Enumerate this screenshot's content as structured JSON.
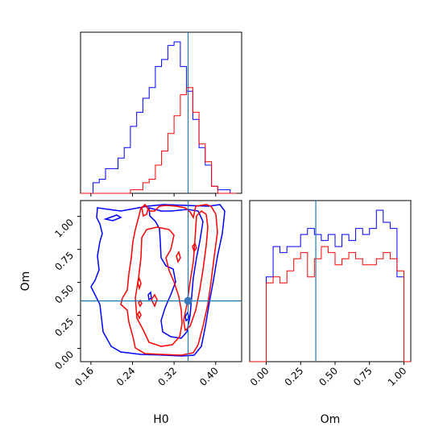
{
  "chart_data": {
    "type": "corner",
    "parameters": [
      "H0",
      "Om"
    ],
    "truth": {
      "H0": 0.347,
      "Om": 0.36
    },
    "colors": {
      "truth": "#1f77b4",
      "series_blue": "#0000ff",
      "series_red": "#ff0000",
      "truth_marker": "#3b7bbd"
    },
    "panels": {
      "hist_H0": {
        "xlim": [
          0.14,
          0.45
        ],
        "xticks": [
          0.16,
          0.24,
          0.32,
          0.4
        ],
        "xtick_labels": [
          "0.16",
          "0.24",
          "0.32",
          "0.40"
        ],
        "bin_edges": [
          0.14,
          0.152,
          0.164,
          0.176,
          0.188,
          0.2,
          0.212,
          0.224,
          0.236,
          0.248,
          0.26,
          0.272,
          0.284,
          0.296,
          0.308,
          0.32,
          0.332,
          0.344,
          0.356,
          0.368,
          0.38,
          0.392,
          0.404,
          0.416,
          0.428,
          0.44
        ],
        "series": [
          {
            "color": "blue",
            "counts": [
              0,
              0,
              3,
              4,
              7,
              7,
              10,
              13,
              19,
              23,
              27,
              30,
              36,
              38,
              42,
              43,
              36,
              29,
              21,
              13,
              8,
              2,
              1,
              1,
              0
            ]
          },
          {
            "color": "red",
            "counts": [
              0,
              0,
              0,
              0,
              0,
              0,
              0,
              0,
              1,
              1,
              3,
              4,
              8,
              12,
              17,
              22,
              28,
              30,
              23,
              14,
              9,
              2,
              0,
              0,
              0
            ]
          }
        ]
      },
      "hist_Om": {
        "xlim": [
          -0.12,
          1.05
        ],
        "xticks": [
          0.0,
          0.25,
          0.5,
          0.75,
          1.0
        ],
        "xtick_labels": [
          "0.00",
          "0.25",
          "0.50",
          "0.75",
          "1.00"
        ],
        "xlabel": "Om",
        "bin_edges": [
          -0.12,
          -0.05,
          0.0,
          0.05,
          0.1,
          0.15,
          0.2,
          0.25,
          0.3,
          0.35,
          0.4,
          0.45,
          0.5,
          0.55,
          0.6,
          0.65,
          0.7,
          0.75,
          0.8,
          0.85,
          0.9,
          0.95,
          1.0,
          1.05
        ],
        "series": [
          {
            "color": "blue",
            "counts": [
              0,
              0,
              14,
              19,
              18,
              19,
              19,
              21,
              22,
              21,
              20,
              21,
              19,
              21,
              20,
              22,
              21,
              22,
              25,
              23,
              22,
              14,
              0
            ]
          },
          {
            "color": "red",
            "counts": [
              0,
              0,
              13,
              14,
              13,
              15,
              17,
              18,
              14,
              17,
              19,
              18,
              16,
              17,
              18,
              17,
              16,
              16,
              17,
              18,
              17,
              15,
              0
            ]
          }
        ]
      },
      "scatter_H0_Om": {
        "xlim": [
          0.14,
          0.45
        ],
        "ylim": [
          -0.1,
          1.12
        ],
        "xticks": [
          0.16,
          0.24,
          0.32,
          0.4
        ],
        "xtick_labels": [
          "0.16",
          "0.24",
          "0.32",
          "0.40"
        ],
        "yticks": [
          0.0,
          0.25,
          0.5,
          0.75,
          1.0
        ],
        "ytick_labels": [
          "0.00",
          "0.25",
          "0.50",
          "0.75",
          "1.00"
        ],
        "xlabel": "H0",
        "ylabel": "Om"
      }
    }
  }
}
